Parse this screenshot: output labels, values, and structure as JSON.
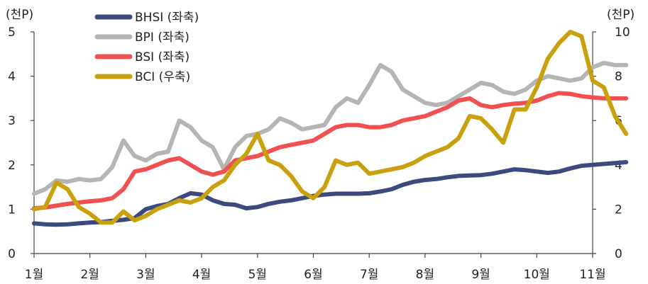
{
  "chart_data": {
    "type": "line",
    "left_unit": "(천P)",
    "right_unit": "(천P)",
    "x_categories": [
      "1월",
      "2월",
      "3월",
      "4월",
      "5월",
      "6월",
      "7월",
      "8월",
      "9월",
      "10월",
      "11월"
    ],
    "y_left_ticks": [
      "0",
      "1",
      "2",
      "3",
      "4",
      "5"
    ],
    "y_right_ticks": [
      "0",
      "2",
      "4",
      "6",
      "8",
      "10"
    ],
    "y_left_range": [
      0,
      5
    ],
    "y_right_range": [
      0,
      10
    ],
    "grid": false,
    "legend_position": "top-left",
    "series": [
      {
        "name": "BHSI (좌축)",
        "axis": "left",
        "color": "#3d4a7e",
        "x": [
          0,
          0.2,
          0.4,
          0.6,
          0.8,
          1.0,
          1.2,
          1.4,
          1.6,
          1.8,
          2.0,
          2.2,
          2.4,
          2.6,
          2.8,
          3.0,
          3.2,
          3.4,
          3.6,
          3.8,
          4.0,
          4.2,
          4.4,
          4.6,
          4.8,
          5.0,
          5.2,
          5.4,
          5.6,
          5.8,
          6.0,
          6.2,
          6.4,
          6.6,
          6.8,
          7.0,
          7.2,
          7.4,
          7.6,
          7.8,
          8.0,
          8.2,
          8.4,
          8.6,
          8.8,
          9.0,
          9.2,
          9.4,
          9.6,
          9.8,
          10.0,
          10.2,
          10.4,
          10.6
        ],
        "values": [
          0.68,
          0.66,
          0.65,
          0.66,
          0.68,
          0.7,
          0.71,
          0.74,
          0.76,
          0.8,
          1.0,
          1.07,
          1.12,
          1.25,
          1.36,
          1.33,
          1.2,
          1.12,
          1.1,
          1.02,
          1.05,
          1.12,
          1.17,
          1.2,
          1.25,
          1.3,
          1.33,
          1.35,
          1.35,
          1.35,
          1.36,
          1.4,
          1.45,
          1.55,
          1.62,
          1.66,
          1.68,
          1.72,
          1.75,
          1.76,
          1.77,
          1.8,
          1.85,
          1.9,
          1.88,
          1.85,
          1.82,
          1.85,
          1.92,
          1.98,
          2.0,
          2.02,
          2.04,
          2.06
        ]
      },
      {
        "name": "BPI (좌축)",
        "axis": "left",
        "color": "#b4b4b4",
        "x": [
          0,
          0.2,
          0.4,
          0.6,
          0.8,
          1.0,
          1.2,
          1.4,
          1.6,
          1.8,
          2.0,
          2.2,
          2.4,
          2.6,
          2.8,
          3.0,
          3.2,
          3.4,
          3.6,
          3.8,
          4.0,
          4.2,
          4.4,
          4.6,
          4.8,
          5.0,
          5.2,
          5.4,
          5.6,
          5.8,
          6.0,
          6.2,
          6.4,
          6.6,
          6.8,
          7.0,
          7.2,
          7.4,
          7.6,
          7.8,
          8.0,
          8.2,
          8.4,
          8.6,
          8.8,
          9.0,
          9.2,
          9.4,
          9.6,
          9.8,
          10.0,
          10.2,
          10.4,
          10.6
        ],
        "values": [
          1.35,
          1.45,
          1.65,
          1.62,
          1.68,
          1.65,
          1.68,
          1.95,
          2.55,
          2.2,
          2.1,
          2.25,
          2.3,
          3.0,
          2.85,
          2.55,
          2.4,
          1.9,
          2.4,
          2.65,
          2.7,
          2.8,
          3.05,
          2.95,
          2.8,
          2.85,
          2.9,
          3.3,
          3.5,
          3.4,
          3.8,
          4.25,
          4.1,
          3.7,
          3.55,
          3.4,
          3.35,
          3.4,
          3.55,
          3.7,
          3.85,
          3.8,
          3.65,
          3.6,
          3.7,
          3.9,
          4.0,
          3.95,
          3.9,
          3.95,
          4.2,
          4.3,
          4.25,
          4.25
        ]
      },
      {
        "name": "BSI (좌축)",
        "axis": "left",
        "color": "#f05050",
        "x": [
          0,
          0.2,
          0.4,
          0.6,
          0.8,
          1.0,
          1.2,
          1.4,
          1.6,
          1.8,
          2.0,
          2.2,
          2.4,
          2.6,
          2.8,
          3.0,
          3.2,
          3.4,
          3.6,
          3.8,
          4.0,
          4.2,
          4.4,
          4.6,
          4.8,
          5.0,
          5.2,
          5.4,
          5.6,
          5.8,
          6.0,
          6.2,
          6.4,
          6.6,
          6.8,
          7.0,
          7.2,
          7.4,
          7.6,
          7.8,
          8.0,
          8.2,
          8.4,
          8.6,
          8.8,
          9.0,
          9.2,
          9.4,
          9.6,
          9.8,
          10.0,
          10.2,
          10.4,
          10.6
        ],
        "values": [
          1.02,
          1.04,
          1.08,
          1.12,
          1.15,
          1.18,
          1.2,
          1.25,
          1.45,
          1.85,
          1.9,
          2.0,
          2.1,
          2.15,
          2.0,
          1.85,
          1.78,
          1.85,
          2.1,
          2.15,
          2.2,
          2.3,
          2.4,
          2.45,
          2.5,
          2.55,
          2.7,
          2.85,
          2.9,
          2.9,
          2.85,
          2.85,
          2.9,
          3.0,
          3.05,
          3.1,
          3.2,
          3.3,
          3.45,
          3.5,
          3.35,
          3.3,
          3.35,
          3.38,
          3.4,
          3.45,
          3.55,
          3.62,
          3.6,
          3.55,
          3.52,
          3.5,
          3.5,
          3.5
        ]
      },
      {
        "name": "BCI (우축)",
        "axis": "right",
        "color": "#c9a00e",
        "x": [
          0,
          0.2,
          0.4,
          0.6,
          0.8,
          1.0,
          1.2,
          1.4,
          1.6,
          1.8,
          2.0,
          2.2,
          2.4,
          2.6,
          2.8,
          3.0,
          3.2,
          3.4,
          3.6,
          3.8,
          4.0,
          4.2,
          4.4,
          4.6,
          4.8,
          5.0,
          5.2,
          5.4,
          5.6,
          5.8,
          6.0,
          6.2,
          6.4,
          6.6,
          6.8,
          7.0,
          7.2,
          7.4,
          7.6,
          7.8,
          8.0,
          8.2,
          8.4,
          8.6,
          8.8,
          9.0,
          9.2,
          9.4,
          9.6,
          9.8,
          10.0,
          10.2,
          10.4,
          10.6
        ],
        "values": [
          2.0,
          2.1,
          3.2,
          2.9,
          2.1,
          1.8,
          1.4,
          1.4,
          1.9,
          1.5,
          1.7,
          2.0,
          2.2,
          2.4,
          2.3,
          2.5,
          3.0,
          3.3,
          4.0,
          4.5,
          5.4,
          4.2,
          4.0,
          3.5,
          2.8,
          2.5,
          3.0,
          4.2,
          4.0,
          4.1,
          3.6,
          3.7,
          3.8,
          3.9,
          4.1,
          4.4,
          4.6,
          4.8,
          5.2,
          6.2,
          6.1,
          5.6,
          5.0,
          6.5,
          6.5,
          7.5,
          8.8,
          9.5,
          10.0,
          9.8,
          7.8,
          7.5,
          6.2,
          5.4
        ]
      }
    ]
  }
}
